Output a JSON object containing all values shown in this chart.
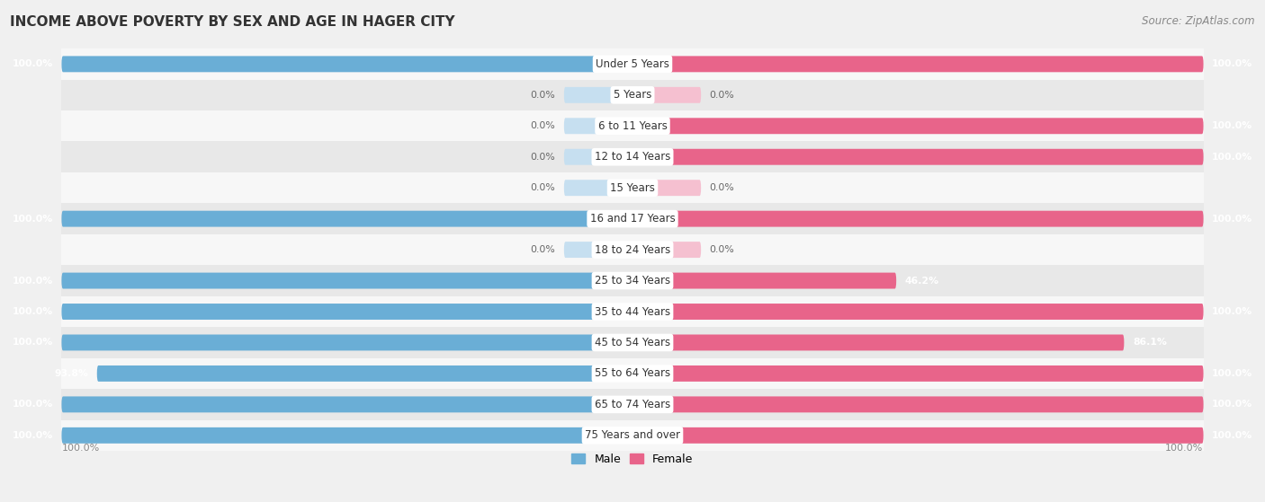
{
  "title": "INCOME ABOVE POVERTY BY SEX AND AGE IN HAGER CITY",
  "source": "Source: ZipAtlas.com",
  "categories": [
    "Under 5 Years",
    "5 Years",
    "6 to 11 Years",
    "12 to 14 Years",
    "15 Years",
    "16 and 17 Years",
    "18 to 24 Years",
    "25 to 34 Years",
    "35 to 44 Years",
    "45 to 54 Years",
    "55 to 64 Years",
    "65 to 74 Years",
    "75 Years and over"
  ],
  "male_values": [
    100.0,
    0.0,
    0.0,
    0.0,
    0.0,
    100.0,
    0.0,
    100.0,
    100.0,
    100.0,
    93.8,
    100.0,
    100.0
  ],
  "female_values": [
    100.0,
    0.0,
    100.0,
    100.0,
    0.0,
    100.0,
    0.0,
    46.2,
    100.0,
    86.1,
    100.0,
    100.0,
    100.0
  ],
  "male_color": "#6aaed6",
  "female_color": "#e8648a",
  "male_color_light": "#c6dff0",
  "female_color_light": "#f5c0d0",
  "bar_height": 0.52,
  "background_color": "#f0f0f0",
  "row_color_light": "#f7f7f7",
  "row_color_dark": "#e8e8e8",
  "xlim_left": -100,
  "xlim_right": 100,
  "legend_male": "Male",
  "legend_female": "Female",
  "zero_stub": 12
}
